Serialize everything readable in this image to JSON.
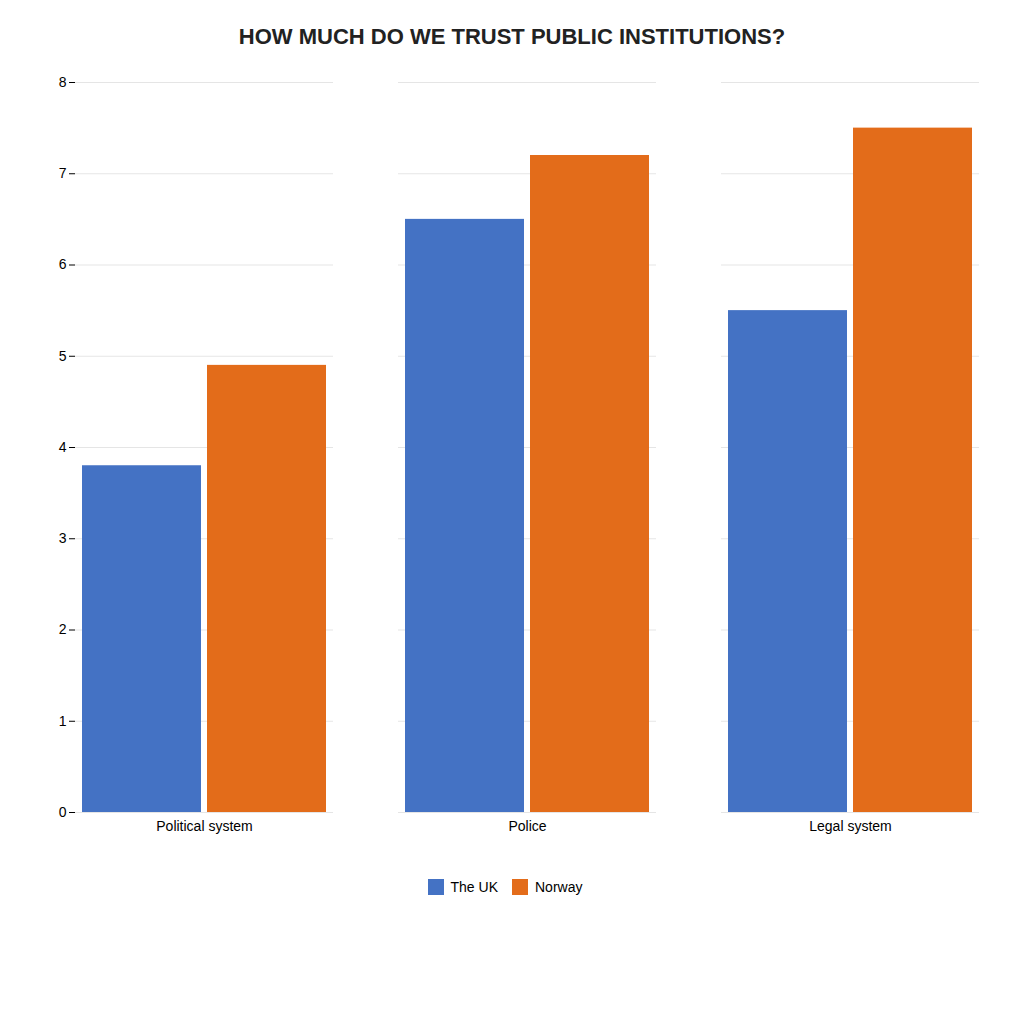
{
  "chart_data": {
    "type": "bar",
    "title": "HOW MUCH DO WE TRUST PUBLIC INSTITUTIONS?",
    "categories": [
      "Political system",
      "Police",
      "Legal system"
    ],
    "series": [
      {
        "name": "The UK",
        "color": "#4472C4",
        "values": [
          3.8,
          6.5,
          5.5
        ]
      },
      {
        "name": "Norway",
        "color": "#E36C1A",
        "values": [
          4.9,
          7.2,
          7.5
        ]
      }
    ],
    "ylim": [
      0,
      8
    ],
    "yticks": [
      0,
      1,
      2,
      3,
      4,
      5,
      6,
      7,
      8
    ],
    "grid": true,
    "legend": "bottom"
  }
}
